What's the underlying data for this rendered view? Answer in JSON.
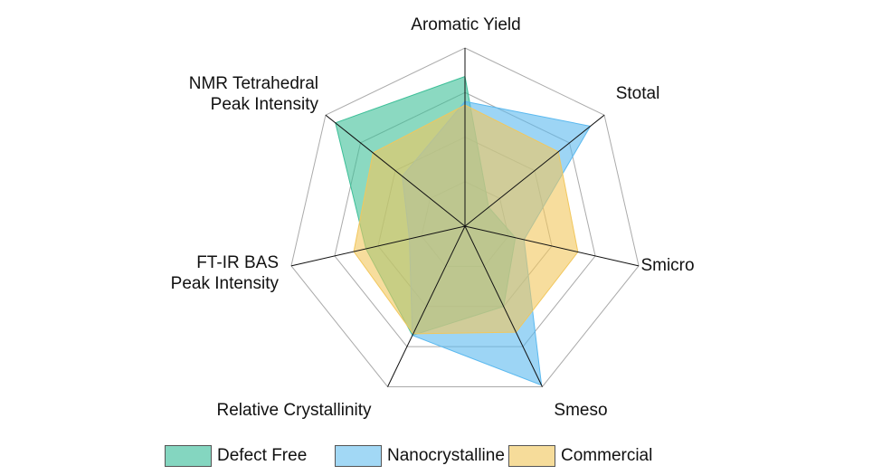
{
  "chart_data": {
    "type": "radar",
    "axes": [
      "Aromatic Yield",
      "Stotal",
      "Smicro",
      "Smeso",
      "Relative Crystallinity",
      "FT-IR BAS Peak Intensity",
      "NMR Tetrahedral Peak Intensity"
    ],
    "axis_label_lines": [
      [
        "Aromatic Yield"
      ],
      [
        "Stotal"
      ],
      [
        "Smicro"
      ],
      [
        "Smeso"
      ],
      [
        "Relative Crystallinity"
      ],
      [
        "FT-IR BAS",
        "Peak Intensity"
      ],
      [
        "NMR Tetrahedral",
        "Peak Intensity"
      ]
    ],
    "range": [
      0,
      1
    ],
    "rings": 4,
    "series": [
      {
        "name": "Defect Free",
        "color": "#3dbf98",
        "values": [
          0.84,
          0.17,
          0.29,
          0.5,
          0.68,
          0.57,
          0.93
        ]
      },
      {
        "name": "Nanocrystalline",
        "color": "#5bb9ef",
        "values": [
          0.7,
          0.9,
          0.34,
          0.99,
          0.68,
          0.32,
          0.45
        ]
      },
      {
        "name": "Commercial",
        "color": "#f2c75c",
        "values": [
          0.68,
          0.67,
          0.65,
          0.66,
          0.67,
          0.64,
          0.66
        ]
      }
    ],
    "legend_position": "bottom"
  }
}
